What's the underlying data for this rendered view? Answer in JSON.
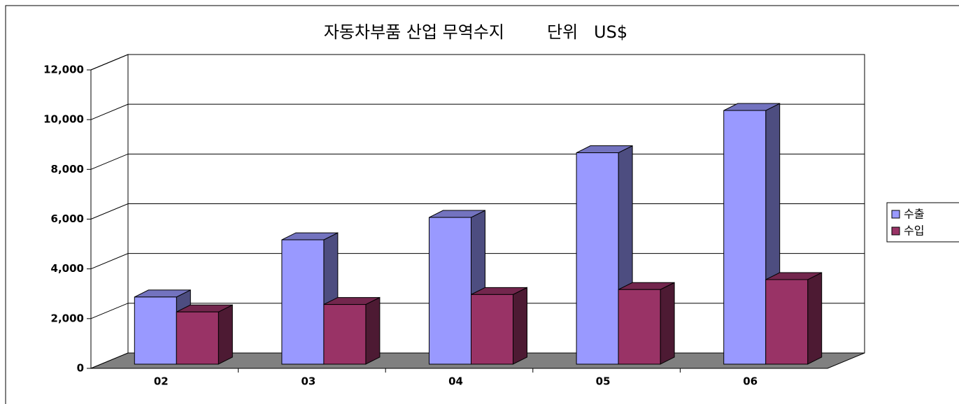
{
  "chart_data": {
    "type": "bar3d",
    "title": "자동차부품 산업 무역수지        단위   US$",
    "categories": [
      "02",
      "03",
      "04",
      "05",
      "06"
    ],
    "series": [
      {
        "name": "수출",
        "color": "#9999ff",
        "values": [
          2700,
          5000,
          5900,
          8500,
          10200
        ]
      },
      {
        "name": "수입",
        "color": "#993366",
        "values": [
          2100,
          2400,
          2800,
          3000,
          3400
        ]
      }
    ],
    "ylim": [
      0,
      12000
    ],
    "yticks": [
      {
        "value": 0,
        "label": "0"
      },
      {
        "value": 2000,
        "label": "2,000"
      },
      {
        "value": 4000,
        "label": "4,000"
      },
      {
        "value": 6000,
        "label": "6,000"
      },
      {
        "value": 8000,
        "label": "8,000"
      },
      {
        "value": 10000,
        "label": "10,000"
      },
      {
        "value": 12000,
        "label": "12,000"
      }
    ],
    "grid": true
  }
}
